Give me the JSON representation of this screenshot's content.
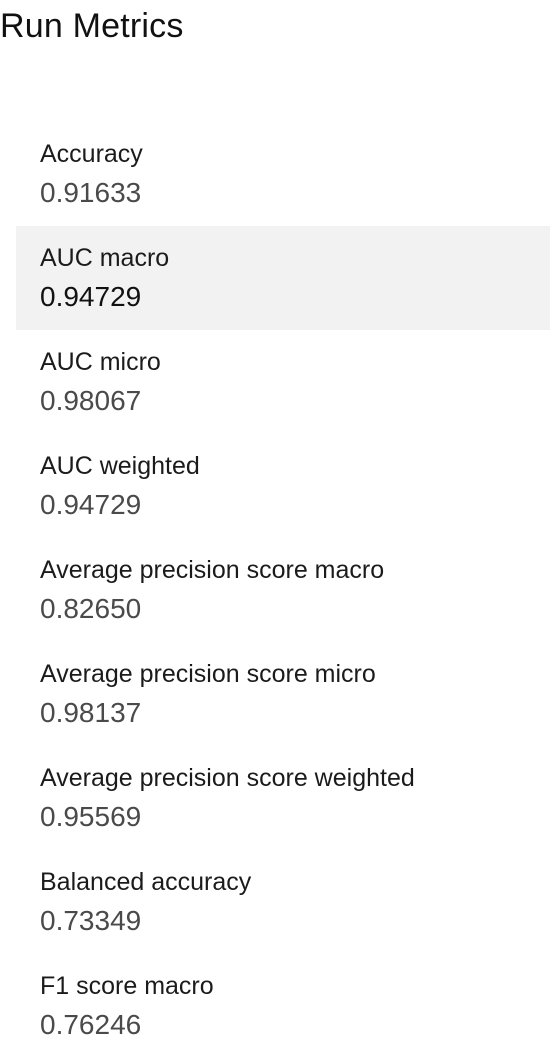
{
  "title": "Run Metrics",
  "metrics": [
    {
      "label": "Accuracy",
      "value": "0.91633"
    },
    {
      "label": "AUC macro",
      "value": "0.94729"
    },
    {
      "label": "AUC micro",
      "value": "0.98067"
    },
    {
      "label": "AUC weighted",
      "value": "0.94729"
    },
    {
      "label": "Average precision score macro",
      "value": "0.82650"
    },
    {
      "label": "Average precision score micro",
      "value": "0.98137"
    },
    {
      "label": "Average precision score weighted",
      "value": "0.95569"
    },
    {
      "label": "Balanced accuracy",
      "value": "0.73349"
    },
    {
      "label": "F1 score macro",
      "value": "0.76246"
    }
  ],
  "selected_index": 1
}
